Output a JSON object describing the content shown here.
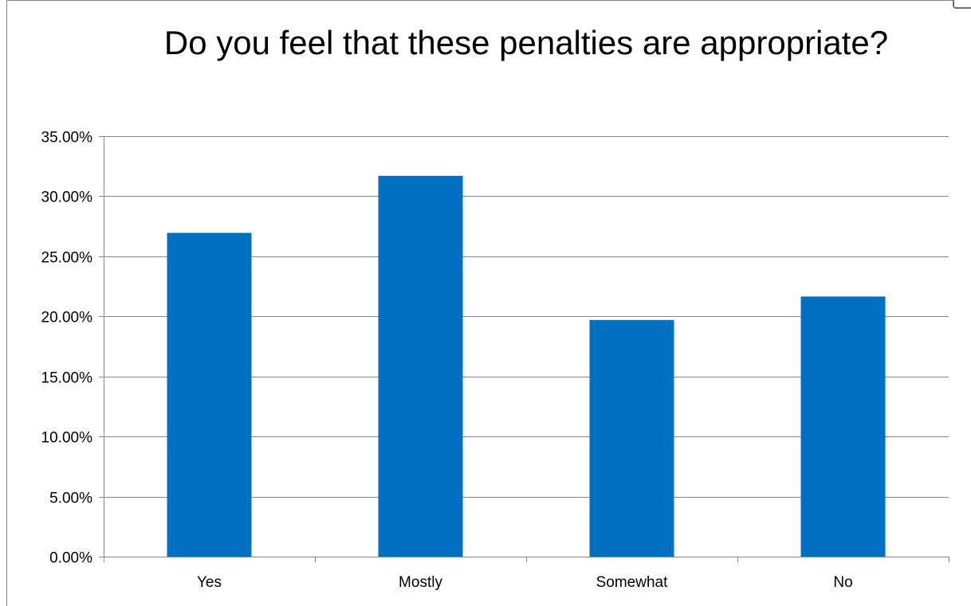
{
  "chart_data": {
    "type": "bar",
    "title": "Do you feel that these penalties are appropriate?",
    "xlabel": "",
    "ylabel": "",
    "categories": [
      "Yes",
      "Mostly",
      "Somewhat",
      "No"
    ],
    "values": [
      0.2695,
      0.317,
      0.197,
      0.2165
    ],
    "ylim": [
      0,
      0.35
    ],
    "ytick_step": 0.05,
    "ytick_labels": [
      "0.00%",
      "5.00%",
      "10.00%",
      "15.00%",
      "20.00%",
      "25.00%",
      "30.00%",
      "35.00%"
    ],
    "grid": true,
    "legend": "none",
    "bar_color": "#0070C0",
    "grid_color": "#868686"
  }
}
